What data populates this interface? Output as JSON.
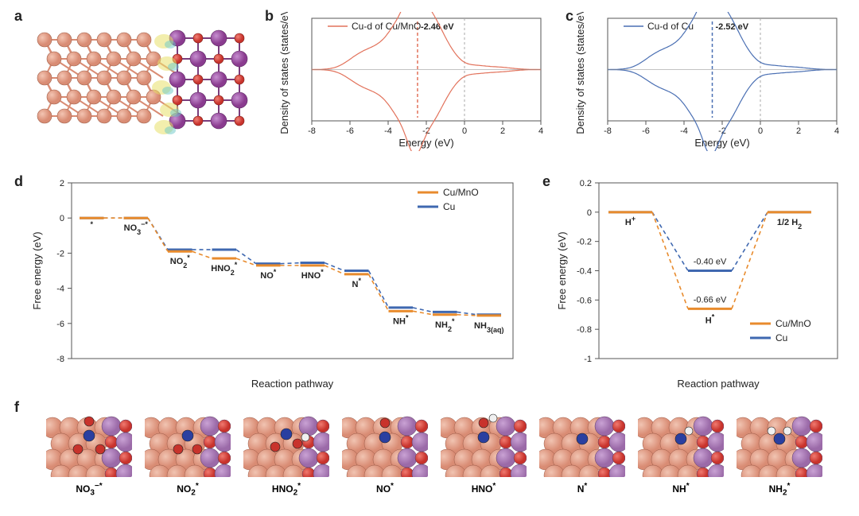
{
  "labels": {
    "a": "a",
    "b": "b",
    "c": "c",
    "d": "d",
    "e": "e",
    "f": "f"
  },
  "panel_b": {
    "type": "line",
    "title": "Cu-d of Cu/MnO",
    "line_color": "#e2725b",
    "dband_label": "-2.46 eV",
    "dband_x": -2.46,
    "xlabel": "Energy (eV)",
    "ylabel": "Density of states (states/eV)",
    "xlim": [
      -8,
      4
    ],
    "xticks": [
      -8,
      -6,
      -4,
      -2,
      0,
      2,
      4
    ],
    "grid_color": "#cccccc",
    "zero_line_color": "#aaaaaa",
    "label_fontsize": 13,
    "tick_fontsize": 11
  },
  "panel_c": {
    "type": "line",
    "title": "Cu-d of  Cu",
    "line_color": "#4a6fb3",
    "dband_label": "-2.52 eV",
    "dband_x": -2.52,
    "xlabel": "Energy (eV)",
    "ylabel": "Density of states (states/eV)",
    "xlim": [
      -8,
      4
    ],
    "xticks": [
      -8,
      -6,
      -4,
      -2,
      0,
      2,
      4
    ],
    "grid_color": "#cccccc",
    "zero_line_color": "#aaaaaa",
    "label_fontsize": 13,
    "tick_fontsize": 11
  },
  "panel_d": {
    "type": "step",
    "xlabel": "Reaction pathway",
    "ylabel": "Free energy (eV)",
    "ylim": [
      -8,
      2
    ],
    "yticks": [
      -8,
      -6,
      -4,
      -2,
      0,
      2
    ],
    "legend": [
      {
        "name": "Cu/MnO",
        "color": "#e88b2d"
      },
      {
        "name": "Cu",
        "color": "#3f68b0"
      }
    ],
    "steps": [
      "*",
      "NO3-*",
      "NO2*",
      "HNO2*",
      "NO*",
      "HNO*",
      "N*",
      "NH*",
      "NH2*",
      "NH3(aq)"
    ],
    "cu_mno": [
      0,
      0,
      -1.9,
      -2.3,
      -2.7,
      -2.7,
      -3.2,
      -5.3,
      -5.5,
      -5.55
    ],
    "cu": [
      0,
      0,
      -1.8,
      -1.8,
      -2.6,
      -2.55,
      -3.0,
      -5.1,
      -5.35,
      -5.5
    ],
    "line_width": 3,
    "dash": "5,4",
    "label_fontsize": 13
  },
  "panel_e": {
    "type": "step",
    "xlabel": "Reaction pathway",
    "ylabel": "Free energy (eV)",
    "ylim": [
      -1,
      0.2
    ],
    "yticks": [
      -1,
      -0.8,
      -0.6,
      -0.4,
      -0.2,
      0,
      0.2
    ],
    "legend": [
      {
        "name": "Cu/MnO",
        "color": "#e88b2d"
      },
      {
        "name": "Cu",
        "color": "#3f68b0"
      }
    ],
    "steps": [
      "H+",
      "H*",
      "1/2 H2"
    ],
    "cu_mno": [
      0,
      -0.66,
      0
    ],
    "cu": [
      0,
      -0.4,
      0
    ],
    "annotations": [
      {
        "text": "-0.40 eV",
        "y": -0.4
      },
      {
        "text": "-0.66 eV",
        "y": -0.66
      }
    ],
    "step_labels": {
      "left": "H+",
      "mid": "H*",
      "right": "1/2 H2"
    },
    "line_width": 3,
    "dash": "5,4",
    "label_fontsize": 13
  },
  "panel_f": {
    "thumbs": [
      "NO3-*",
      "NO2*",
      "HNO2*",
      "NO*",
      "HNO*",
      "N*",
      "NH*",
      "NH2*"
    ],
    "atom_colors": {
      "Cu": "#d98c74",
      "Mn": "#9b6aa8",
      "O": "#c8332c",
      "N": "#2a3fa0",
      "H": "#f0f0f0"
    },
    "label_fontsize": 13
  },
  "panel_a": {
    "colors": {
      "Cu": "#d98c74",
      "Mn": "#8a3b8f",
      "O": "#c8332c",
      "charge_pos": "#e8e06a",
      "charge_neg": "#6ac7c7"
    }
  }
}
